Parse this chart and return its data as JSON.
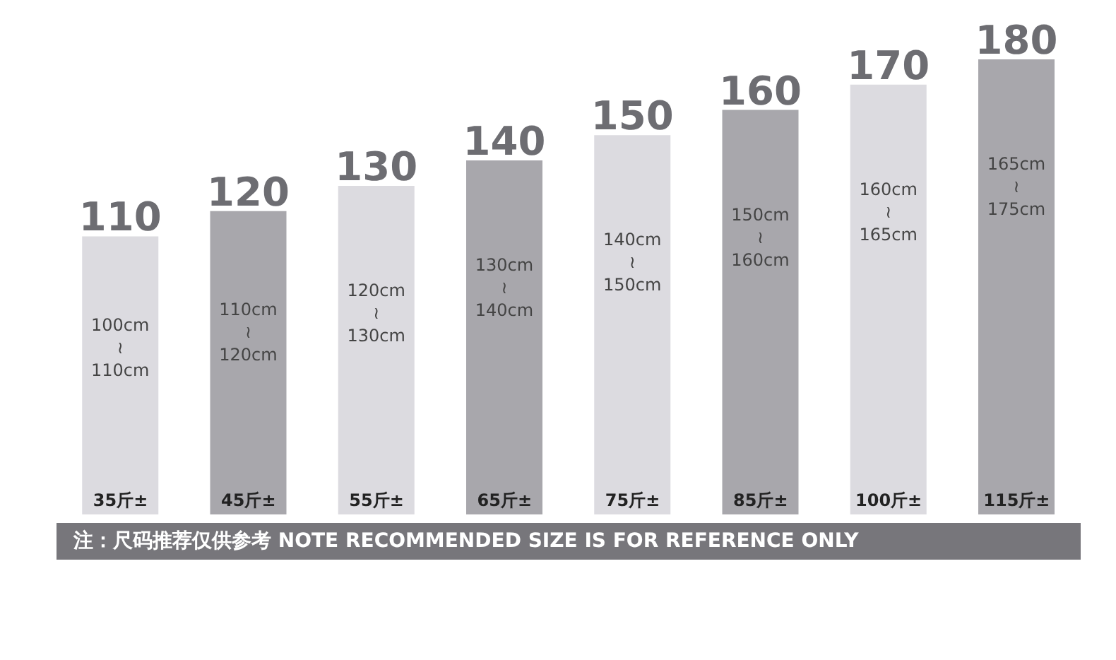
{
  "chart_data": {
    "type": "bar",
    "categories": [
      "35斤±",
      "45斤±",
      "55斤±",
      "65斤±",
      "75斤±",
      "85斤±",
      "100斤±",
      "115斤±"
    ],
    "values": [
      110,
      120,
      130,
      140,
      150,
      160,
      170,
      180
    ],
    "colors": [
      "#dcdbe0",
      "#a8a7ac",
      "#dcdbe0",
      "#a8a7ac",
      "#dcdbe0",
      "#a8a7ac",
      "#dcdbe0",
      "#a8a7ac"
    ],
    "data_labels": true,
    "tick_labels": "x",
    "annotations": [
      "100cm\n≀\n110cm",
      "110cm\n≀\n120cm",
      "120cm\n≀\n130cm",
      "130cm\n≀\n140cm",
      "140cm\n≀\n150cm",
      "150cm\n≀\n160cm",
      "160cm\n≀\n165cm",
      "165cm\n≀\n175cm",
      "注：尺码推荐仅供参考 NOTE RECOMMENDED SIZE IS FOR REFERENCE ONLY"
    ]
  }
}
